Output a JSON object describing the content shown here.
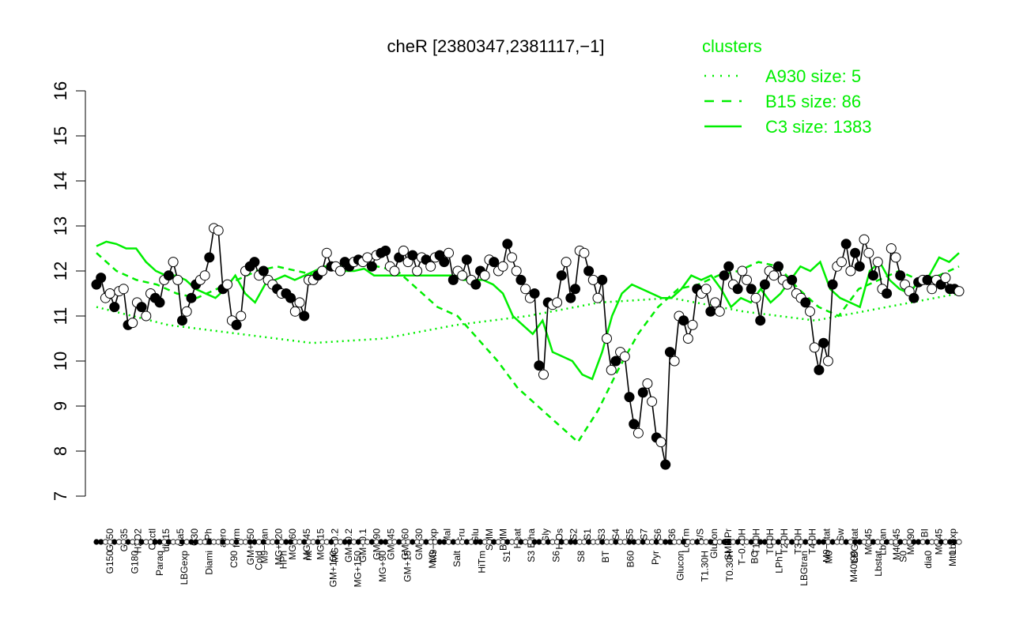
{
  "chart_data": {
    "type": "line",
    "title": "cheR [2380347,2381117,−1]",
    "xlabel": "",
    "ylabel": "",
    "ylim": [
      7,
      16
    ],
    "y_ticks": [
      "7",
      "8",
      "9",
      "10",
      "11",
      "12",
      "13",
      "14",
      "15",
      "16"
    ],
    "x_tick_labels_top": [
      "G150",
      "G135",
      "H2O2",
      "Oxctl",
      "dia15",
      "dia5",
      "C30",
      "LPh",
      "aero",
      "ferm",
      "GM+150",
      "M9−tran",
      "MG+120",
      "MG+60",
      "MG+45",
      "MG+15",
      "MG−0.2",
      "GM−0.2",
      "GM−0.1",
      "GM+90",
      "GM+45",
      "GM+60",
      "GM+30",
      "M9−exp",
      "Mal",
      "Fru",
      "Glu",
      "SMM",
      "BMM",
      "Heat",
      "Etha",
      "Gly",
      "HiOs",
      "S2",
      "S1",
      "S3",
      "S4",
      "S5",
      "S7",
      "S6",
      "B36",
      "LoTm",
      "G/S",
      "Glucon",
      "SMMPr",
      "T−0.40H",
      "T1.0H",
      "T0.0H",
      "T2.0H",
      "T3.0H",
      "T4.0H",
      "M9−stat",
      "Sw",
      "LBGstat",
      "M0t45",
      "Lbtran",
      "M40t45",
      "M0t90",
      "BI",
      "M0t45",
      "Lbexp"
    ],
    "x_tick_labels_bottom": [
      "G150",
      "G180",
      "Paraq",
      "LBGexp",
      "Diami",
      "C90",
      "Cold",
      "HPh",
      "nit",
      "GM+150",
      "MG+150",
      "MG+90",
      "GM+15",
      "M/G",
      "Salt",
      "HiTm",
      "S1",
      "S3",
      "S6",
      "S8",
      "BT",
      "B60",
      "Pyr",
      "Glucon",
      "T1.30H",
      "T0.30H",
      "BC",
      "LPhT",
      "LBGtran",
      "M0",
      "M40t90",
      "Lbstat",
      "S0",
      "dia0",
      "Mt0"
    ],
    "legend": {
      "title": "clusters",
      "entries": [
        {
          "label": "A930 size: 5",
          "style": "dotted"
        },
        {
          "label": "B15 size: 86",
          "style": "dashed"
        },
        {
          "label": "C3 size: 1383",
          "style": "solid"
        }
      ],
      "placement": "top-right"
    },
    "series": [
      {
        "values": [
          11.7,
          11.85,
          11.4,
          11.5,
          11.2,
          11.55,
          11.6,
          10.8,
          10.85,
          11.3,
          11.2,
          11.0,
          11.5,
          11.4,
          11.3,
          11.8,
          11.9,
          12.2,
          11.8,
          10.9,
          11.1,
          11.4,
          11.7,
          11.8,
          11.9,
          12.3,
          12.95,
          12.9,
          11.6,
          11.7,
          10.9,
          10.8,
          11.0,
          12.0,
          12.1,
          12.2,
          11.9,
          12.0,
          11.8,
          11.7,
          11.6,
          11.5,
          11.5,
          11.4,
          11.1,
          11.3,
          11.0,
          11.8,
          11.8,
          11.9,
          12.0,
          12.4,
          12.1,
          12.1,
          12.0,
          12.2,
          12.1,
          12.2,
          12.25,
          12.2,
          12.3,
          12.1,
          12.35,
          12.4,
          12.45,
          12.1,
          12.0,
          12.3,
          12.45,
          12.2,
          12.35,
          12.0,
          12.3,
          12.25,
          12.1,
          12.3,
          12.35,
          12.2,
          12.4,
          11.8,
          12.0,
          11.9,
          12.25,
          11.8,
          11.7,
          12.0,
          11.9,
          12.25,
          12.2,
          12.0,
          12.1,
          12.6,
          12.3,
          12.0,
          11.8,
          11.6,
          11.4,
          11.5,
          9.9,
          9.7,
          11.3,
          11.25,
          11.3,
          11.9,
          12.2,
          11.4,
          11.6,
          12.45,
          12.4,
          12.0,
          11.8,
          11.4,
          11.8,
          10.5,
          9.8,
          10.0,
          10.2,
          10.1,
          9.2,
          8.6,
          8.4,
          9.3,
          9.5,
          9.1,
          8.3,
          8.2,
          7.7,
          10.2,
          10.0,
          11.0,
          10.9,
          10.5,
          10.8,
          11.6,
          11.5,
          11.6,
          11.1,
          11.3,
          11.1,
          11.9,
          12.1,
          11.7,
          11.6,
          12.0,
          11.8,
          11.6,
          11.4,
          10.9,
          11.7,
          12.0,
          11.9,
          12.1,
          11.8,
          11.7,
          11.8,
          11.5,
          11.4,
          11.3,
          11.1,
          10.3,
          9.8,
          10.4,
          10.0,
          11.7,
          12.1,
          12.2,
          12.6,
          12.0,
          12.4,
          12.1,
          12.7,
          12.4,
          11.9,
          12.2,
          11.6,
          11.5,
          12.5,
          12.3,
          11.9,
          11.7,
          11.55,
          11.4,
          11.75,
          11.8,
          11.8,
          11.6,
          11.8,
          11.7,
          11.85,
          11.6,
          11.6,
          11.55
        ]
      },
      {
        "name": "C3 size: 1383",
        "values": [
          12.55,
          12.65,
          12.6,
          12.5,
          12.5,
          12.2,
          12.0,
          11.9,
          11.9,
          11.8,
          11.6,
          11.5,
          11.4,
          11.6,
          11.9,
          11.5,
          11.3,
          11.7,
          11.8,
          11.9,
          11.8,
          11.9,
          12.0,
          12.1,
          12.1,
          12.0,
          12.0,
          12.05,
          11.9,
          11.9,
          11.9,
          11.9,
          11.9,
          11.9,
          11.9,
          11.9,
          11.9,
          11.8,
          11.8,
          11.8,
          11.7,
          11.5,
          11.0,
          10.8,
          10.6,
          10.9,
          10.2,
          10.1,
          10.0,
          9.7,
          9.6,
          10.2,
          11.0,
          11.5,
          11.7,
          11.6,
          11.5,
          11.4,
          11.4,
          11.6,
          11.9,
          11.8,
          11.9,
          11.6,
          11.2,
          11.4,
          11.3,
          11.6,
          11.3,
          11.5,
          11.8,
          12.1,
          12.0,
          12.2,
          11.6,
          11.4,
          11.3,
          11.2,
          12.0,
          12.2,
          11.8,
          11.6,
          11.5,
          11.8,
          11.9,
          12.3,
          12.2,
          12.4
        ]
      },
      {
        "name": "B15 size: 86",
        "values": [
          12.4,
          12.0,
          11.8,
          11.7,
          11.5,
          11.4,
          11.6,
          11.8,
          12.0,
          12.1,
          12.0,
          11.9,
          12.1,
          12.2,
          12.1,
          12.0,
          11.6,
          11.2,
          11.0,
          10.5,
          10.0,
          9.4,
          9.0,
          8.6,
          8.2,
          8.9,
          9.8,
          10.6,
          11.2,
          11.6,
          11.7,
          11.9,
          12.0,
          12.2,
          12.1,
          11.6,
          11.2,
          11.0,
          11.6,
          11.8,
          12.0,
          11.8,
          11.9,
          12.1
        ]
      },
      {
        "name": "A930 size: 5",
        "values": [
          11.2,
          10.8,
          10.6,
          10.4,
          10.5,
          10.8,
          11.0,
          11.3,
          11.4,
          11.1,
          10.9,
          11.2,
          11.5
        ]
      }
    ]
  }
}
